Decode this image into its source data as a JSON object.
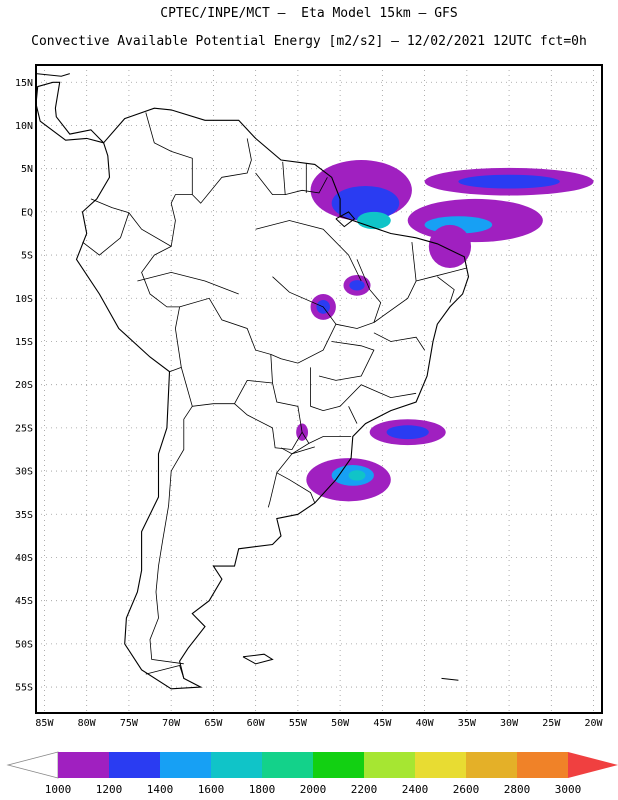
{
  "title_line1": "CPTEC/INPE/MCT –  Eta Model 15km – GFS",
  "title_line2": "Convective Available Potential Energy [m2/s2] – 12/02/2021 12UTC fct=0h",
  "map": {
    "lon_range": [
      -86,
      -19
    ],
    "lat_range": [
      -58,
      17
    ],
    "grid": true,
    "lat_ticks": [
      "15N",
      "10N",
      "5N",
      "EQ",
      "5S",
      "10S",
      "15S",
      "20S",
      "25S",
      "30S",
      "35S",
      "40S",
      "45S",
      "50S",
      "55S"
    ],
    "lon_ticks": [
      "85W",
      "80W",
      "75W",
      "70W",
      "65W",
      "60W",
      "55W",
      "50W",
      "45W",
      "40W",
      "35W",
      "30W",
      "25W",
      "20W"
    ]
  },
  "colorbar": {
    "labels": [
      "1000",
      "1200",
      "1400",
      "1600",
      "1800",
      "2000",
      "2200",
      "2400",
      "2600",
      "2800",
      "3000"
    ],
    "colors": [
      "#a020c0",
      "#2a3cf2",
      "#17a0f4",
      "#10c4c8",
      "#13d28a",
      "#12d012",
      "#a6e632",
      "#e8dc32",
      "#e4b028",
      "#f08228",
      "#f04040"
    ],
    "under_color": "#ffffff",
    "over_color": "#f04040"
  },
  "cape_regions": [
    {
      "name": "amazon-mouth-region",
      "color": "#a020c0",
      "lon": -47.5,
      "lat": 2.5,
      "rx": 6,
      "ry": 3.5
    },
    {
      "name": "amazon-mouth-core",
      "color": "#2a3cf2",
      "lon": -47,
      "lat": 1,
      "rx": 4,
      "ry": 2
    },
    {
      "name": "amazon-mouth-teal",
      "color": "#10c4c8",
      "lon": -46,
      "lat": -1,
      "rx": 2,
      "ry": 1
    },
    {
      "name": "atlantic-north-band",
      "color": "#a020c0",
      "lon": -30,
      "lat": 3.5,
      "rx": 10,
      "ry": 1.6
    },
    {
      "name": "atlantic-north-band-core",
      "color": "#2a3cf2",
      "lon": -30,
      "lat": 3.5,
      "rx": 6,
      "ry": 0.8
    },
    {
      "name": "atlantic-eq-band",
      "color": "#a020c0",
      "lon": -34,
      "lat": -1,
      "rx": 8,
      "ry": 2.5
    },
    {
      "name": "atlantic-eq-band-core",
      "color": "#17a0f4",
      "lon": -36,
      "lat": -1.5,
      "rx": 4,
      "ry": 1
    },
    {
      "name": "northeast-coast",
      "color": "#a020c0",
      "lon": -37,
      "lat": -4,
      "rx": 2.5,
      "ry": 2.5
    },
    {
      "name": "tocantins-patch",
      "color": "#a020c0",
      "lon": -52,
      "lat": -11,
      "rx": 1.5,
      "ry": 1.5
    },
    {
      "name": "tocantins-patch-core",
      "color": "#2a3cf2",
      "lon": -52,
      "lat": -11,
      "rx": 0.8,
      "ry": 0.8
    },
    {
      "name": "central-patch",
      "color": "#a020c0",
      "lon": -48,
      "lat": -8.5,
      "rx": 1.6,
      "ry": 1.2
    },
    {
      "name": "central-patch-core",
      "color": "#2a3cf2",
      "lon": -48,
      "lat": -8.5,
      "rx": 0.9,
      "ry": 0.6
    },
    {
      "name": "paraguay-patch",
      "color": "#a020c0",
      "lon": -54.5,
      "lat": -25.5,
      "rx": 0.7,
      "ry": 1
    },
    {
      "name": "south-atlantic-1",
      "color": "#a020c0",
      "lon": -42,
      "lat": -25.5,
      "rx": 4.5,
      "ry": 1.5
    },
    {
      "name": "south-atlantic-1-core",
      "color": "#2a3cf2",
      "lon": -42,
      "lat": -25.5,
      "rx": 2.5,
      "ry": 0.8
    },
    {
      "name": "south-atlantic-2",
      "color": "#a020c0",
      "lon": -49,
      "lat": -31,
      "rx": 5,
      "ry": 2.5
    },
    {
      "name": "south-atlantic-2-core",
      "color": "#17a0f4",
      "lon": -48.5,
      "lat": -30.5,
      "rx": 2.5,
      "ry": 1.2
    },
    {
      "name": "south-atlantic-2-teal",
      "color": "#10c4c8",
      "lon": -48,
      "lat": -30.5,
      "rx": 1,
      "ry": 0.6
    }
  ],
  "coastline": [
    [
      -78,
      8
    ],
    [
      -75.5,
      10.8
    ],
    [
      -72,
      12
    ],
    [
      -70,
      11.8
    ],
    [
      -66,
      10.6
    ],
    [
      -62,
      10.6
    ],
    [
      -60,
      8.5
    ],
    [
      -57,
      6
    ],
    [
      -53,
      5.5
    ],
    [
      -51,
      4
    ],
    [
      -50,
      1.5
    ],
    [
      -50,
      -0.5
    ],
    [
      -48.5,
      -1
    ],
    [
      -44,
      -2.5
    ],
    [
      -41,
      -3
    ],
    [
      -38.5,
      -3.7
    ],
    [
      -35.3,
      -5.2
    ],
    [
      -34.8,
      -7.5
    ],
    [
      -35.5,
      -9.5
    ],
    [
      -37,
      -11
    ],
    [
      -38.5,
      -13
    ],
    [
      -39,
      -15
    ],
    [
      -39.7,
      -19
    ],
    [
      -41,
      -22
    ],
    [
      -44,
      -23
    ],
    [
      -47,
      -24.5
    ],
    [
      -48.5,
      -26
    ],
    [
      -48.7,
      -28.5
    ],
    [
      -50.5,
      -31
    ],
    [
      -53,
      -33.7
    ],
    [
      -55,
      -35
    ],
    [
      -57.5,
      -35.5
    ],
    [
      -57,
      -37.5
    ],
    [
      -58,
      -38.5
    ],
    [
      -62,
      -39
    ],
    [
      -62.5,
      -41
    ],
    [
      -65,
      -41
    ],
    [
      -64,
      -42.5
    ],
    [
      -65.5,
      -45
    ],
    [
      -67.5,
      -46.5
    ],
    [
      -66,
      -48
    ],
    [
      -68,
      -50.5
    ],
    [
      -69,
      -52
    ],
    [
      -68.5,
      -54
    ],
    [
      -66.5,
      -55
    ],
    [
      -70,
      -55.2
    ],
    [
      -73.5,
      -53
    ],
    [
      -75.5,
      -50
    ],
    [
      -75.3,
      -47
    ],
    [
      -74,
      -44
    ],
    [
      -73.5,
      -41.5
    ],
    [
      -73.5,
      -37
    ],
    [
      -71.5,
      -33
    ],
    [
      -71.5,
      -28
    ],
    [
      -70.5,
      -25
    ],
    [
      -70.2,
      -18.5
    ],
    [
      -72.5,
      -16.8
    ],
    [
      -76.2,
      -13.5
    ],
    [
      -78.5,
      -9.5
    ],
    [
      -81.2,
      -5.5
    ],
    [
      -80,
      -2.5
    ],
    [
      -80.5,
      0
    ],
    [
      -78.8,
      1.5
    ],
    [
      -77.3,
      4
    ],
    [
      -77.5,
      6.5
    ],
    [
      -78,
      8
    ]
  ],
  "central_america": [
    [
      -78,
      8
    ],
    [
      -80,
      8.5
    ],
    [
      -82.5,
      8.3
    ],
    [
      -85.5,
      10.5
    ],
    [
      -86,
      12.5
    ],
    [
      -85.8,
      14.5
    ],
    [
      -84,
      15
    ],
    [
      -83.2,
      15
    ],
    [
      -83.7,
      12
    ],
    [
      -83.6,
      11
    ],
    [
      -82,
      9
    ],
    [
      -79.5,
      9.5
    ],
    [
      -78,
      8
    ]
  ],
  "islands": [
    {
      "name": "cuba-fragment",
      "pts": [
        [
          -86,
          16
        ],
        [
          -83,
          15.7
        ],
        [
          -82,
          16
        ]
      ]
    },
    {
      "name": "marajo-island",
      "pts": [
        [
          -50.5,
          -0.8
        ],
        [
          -49,
          0
        ],
        [
          -48.3,
          -0.8
        ],
        [
          -49.5,
          -1.7
        ],
        [
          -50.5,
          -0.8
        ]
      ]
    },
    {
      "name": "falklands",
      "pts": [
        [
          -61.5,
          -51.5
        ],
        [
          -59,
          -51.2
        ],
        [
          -58,
          -51.8
        ],
        [
          -60,
          -52.3
        ],
        [
          -61.5,
          -51.5
        ]
      ]
    },
    {
      "name": "south-georgia",
      "pts": [
        [
          -38,
          -54
        ],
        [
          -36,
          -54.2
        ]
      ]
    }
  ],
  "borders": [
    [
      [
        -73,
        11.5
      ],
      [
        -72,
        8
      ],
      [
        -70,
        7
      ],
      [
        -67.5,
        6.2
      ],
      [
        -67.5,
        2
      ],
      [
        -66.5,
        1
      ],
      [
        -64,
        4
      ],
      [
        -61,
        4.5
      ],
      [
        -60.5,
        6
      ],
      [
        -61,
        8.5
      ]
    ],
    [
      [
        -60,
        4.5
      ],
      [
        -58,
        2
      ],
      [
        -56.5,
        2
      ],
      [
        -54.5,
        2.5
      ],
      [
        -52.5,
        2.2
      ],
      [
        -51.5,
        4
      ]
    ],
    [
      [
        -56.5,
        2
      ],
      [
        -56.8,
        5.8
      ]
    ],
    [
      [
        -54,
        2.2
      ],
      [
        -54,
        5.6
      ]
    ],
    [
      [
        -79.5,
        1.5
      ],
      [
        -77,
        0.5
      ],
      [
        -75,
        -0.1
      ],
      [
        -73.5,
        -2
      ],
      [
        -70,
        -4
      ],
      [
        -69.5,
        -1
      ],
      [
        -70,
        1
      ],
      [
        -69.5,
        2
      ],
      [
        -67.5,
        2
      ]
    ],
    [
      [
        -80.5,
        -3.5
      ],
      [
        -78.5,
        -5
      ],
      [
        -76,
        -3
      ],
      [
        -75,
        -0.1
      ]
    ],
    [
      [
        -70,
        -4
      ],
      [
        -72,
        -5
      ],
      [
        -73.5,
        -7
      ],
      [
        -72.5,
        -9.5
      ],
      [
        -70.5,
        -11
      ],
      [
        -69,
        -11
      ],
      [
        -69.5,
        -13.5
      ],
      [
        -68.8,
        -18
      ],
      [
        -70.2,
        -18.5
      ]
    ],
    [
      [
        -69,
        -11
      ],
      [
        -65.5,
        -10
      ],
      [
        -64,
        -12.5
      ],
      [
        -61,
        -13.5
      ],
      [
        -60,
        -16
      ],
      [
        -58.2,
        -16.5
      ],
      [
        -58,
        -19.8
      ],
      [
        -57.5,
        -22
      ],
      [
        -55,
        -22.5
      ],
      [
        -54.5,
        -25.5
      ],
      [
        -53.7,
        -26.8
      ],
      [
        -55.7,
        -28
      ],
      [
        -57.5,
        -30.2
      ],
      [
        -56,
        -31
      ],
      [
        -53.5,
        -32.5
      ],
      [
        -53,
        -33.7
      ]
    ],
    [
      [
        -68.8,
        -18
      ],
      [
        -67.5,
        -22.5
      ],
      [
        -65,
        -22.2
      ],
      [
        -62.5,
        -22.2
      ],
      [
        -61,
        -19.5
      ],
      [
        -58,
        -19.8
      ]
    ],
    [
      [
        -62.5,
        -22.2
      ],
      [
        -61,
        -23.5
      ],
      [
        -58,
        -25
      ],
      [
        -57.7,
        -27.3
      ],
      [
        -55.7,
        -27.5
      ],
      [
        -54.5,
        -25.5
      ]
    ],
    [
      [
        -57.5,
        -30.2
      ],
      [
        -58.3,
        -33.5
      ],
      [
        -58.5,
        -34.2
      ]
    ],
    [
      [
        -67.5,
        -22.5
      ],
      [
        -68.5,
        -24
      ],
      [
        -68.5,
        -27.5
      ],
      [
        -70,
        -30
      ],
      [
        -70.3,
        -34
      ],
      [
        -71,
        -38
      ],
      [
        -71.5,
        -41
      ],
      [
        -71.8,
        -44
      ],
      [
        -71.5,
        -47
      ],
      [
        -72.5,
        -49.5
      ],
      [
        -72.3,
        -51.8
      ],
      [
        -68.5,
        -52.3
      ]
    ],
    [
      [
        -73,
        -53.5
      ],
      [
        -69,
        -52.5
      ],
      [
        -68.5,
        -54
      ]
    ],
    [
      [
        -60,
        -2
      ],
      [
        -56,
        -1
      ],
      [
        -52,
        -2
      ],
      [
        -49,
        -5
      ],
      [
        -47.5,
        -8
      ]
    ],
    [
      [
        -74,
        -8
      ],
      [
        -70,
        -7
      ],
      [
        -66,
        -8
      ],
      [
        -62,
        -9.5
      ]
    ],
    [
      [
        -58,
        -7.5
      ],
      [
        -56,
        -9.3
      ],
      [
        -52,
        -11
      ],
      [
        -50.5,
        -13
      ],
      [
        -52,
        -16
      ],
      [
        -55,
        -17.5
      ],
      [
        -57,
        -17
      ],
      [
        -58.2,
        -16.5
      ]
    ],
    [
      [
        -50.5,
        -13
      ],
      [
        -48,
        -13.5
      ],
      [
        -46,
        -12.8
      ],
      [
        -45.2,
        -10.5
      ],
      [
        -46.5,
        -9
      ],
      [
        -48,
        -5.5
      ]
    ],
    [
      [
        -46,
        -12.8
      ],
      [
        -42,
        -10
      ],
      [
        -41,
        -8
      ],
      [
        -41.5,
        -3.5
      ]
    ],
    [
      [
        -41,
        -8
      ],
      [
        -39,
        -7.5
      ],
      [
        -37,
        -7
      ],
      [
        -35,
        -6.5
      ]
    ],
    [
      [
        -38.5,
        -7.5
      ],
      [
        -36.5,
        -9
      ],
      [
        -37,
        -10.5
      ]
    ],
    [
      [
        -46,
        -14
      ],
      [
        -44,
        -15
      ],
      [
        -41,
        -14.5
      ],
      [
        -40,
        -16
      ]
    ],
    [
      [
        -51,
        -15
      ],
      [
        -47.5,
        -15.5
      ],
      [
        -46,
        -16
      ],
      [
        -47.5,
        -19
      ],
      [
        -50.5,
        -19.5
      ],
      [
        -52.5,
        -19
      ]
    ],
    [
      [
        -53.5,
        -18
      ],
      [
        -53.5,
        -22.5
      ],
      [
        -52,
        -23
      ],
      [
        -50,
        -22.5
      ],
      [
        -47.5,
        -20
      ],
      [
        -44,
        -21.5
      ],
      [
        -41,
        -21
      ]
    ],
    [
      [
        -53.7,
        -26.8
      ],
      [
        -52,
        -26
      ],
      [
        -48.7,
        -26
      ]
    ],
    [
      [
        -49,
        -22.5
      ],
      [
        -48,
        -24.5
      ]
    ],
    [
      [
        -57,
        -27.3
      ],
      [
        -55.7,
        -28
      ],
      [
        -53,
        -27.2
      ]
    ]
  ]
}
